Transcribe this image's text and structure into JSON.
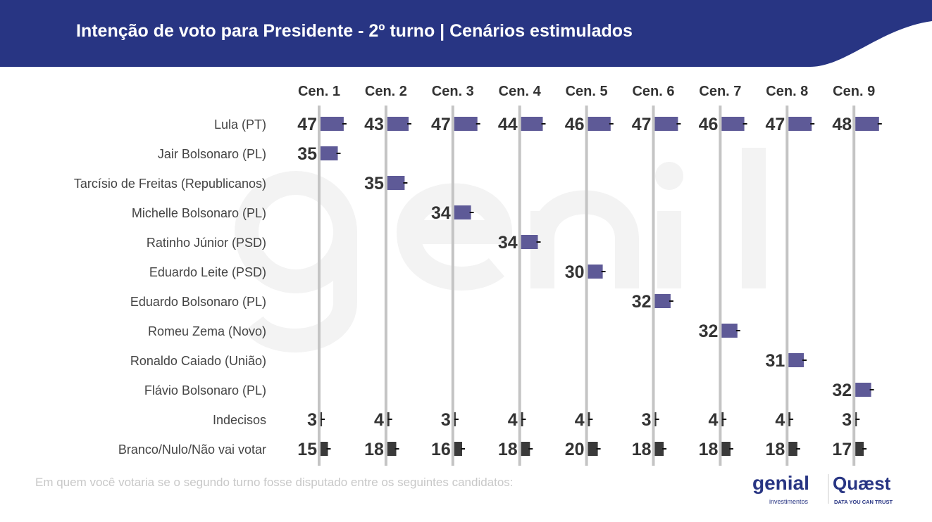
{
  "header": {
    "title": "Intenção de voto para Presidente - 2º turno | Cenários estimulados"
  },
  "note": "Em quem você votaria se o segundo turno fosse disputado entre os seguintes candidatos:",
  "logos": {
    "genial": "genial",
    "genial_sub": "investimentos",
    "quaest": "Quæst",
    "quaest_sub": "DATA YOU CAN TRUST"
  },
  "watermark": {
    "big": "genial",
    "small": "investimentos"
  },
  "colors": {
    "header": "#283583",
    "candidate_bar": "#5e5a97",
    "other_bar": "#3a3a3a",
    "axis": "#c4c4c4",
    "text": "#333333"
  },
  "chart_data": {
    "type": "bar",
    "orientation": "horizontal",
    "scenarios": [
      "Cen. 1",
      "Cen. 2",
      "Cen. 3",
      "Cen. 4",
      "Cen. 5",
      "Cen. 6",
      "Cen. 7",
      "Cen. 8",
      "Cen. 9"
    ],
    "rows": [
      {
        "label": "Lula (PT)",
        "values": [
          47,
          43,
          47,
          44,
          46,
          47,
          46,
          47,
          48
        ],
        "kind": "candidate"
      },
      {
        "label": "Jair Bolsonaro (PL)",
        "values": [
          35,
          null,
          null,
          null,
          null,
          null,
          null,
          null,
          null
        ],
        "kind": "candidate"
      },
      {
        "label": "Tarcísio de Freitas (Republicanos)",
        "values": [
          null,
          35,
          null,
          null,
          null,
          null,
          null,
          null,
          null
        ],
        "kind": "candidate"
      },
      {
        "label": "Michelle Bolsonaro (PL)",
        "values": [
          null,
          null,
          34,
          null,
          null,
          null,
          null,
          null,
          null
        ],
        "kind": "candidate"
      },
      {
        "label": "Ratinho Júnior (PSD)",
        "values": [
          null,
          null,
          null,
          34,
          null,
          null,
          null,
          null,
          null
        ],
        "kind": "candidate"
      },
      {
        "label": "Eduardo Leite (PSD)",
        "values": [
          null,
          null,
          null,
          null,
          30,
          null,
          null,
          null,
          null
        ],
        "kind": "candidate"
      },
      {
        "label": "Eduardo Bolsonaro (PL)",
        "values": [
          null,
          null,
          null,
          null,
          null,
          32,
          null,
          null,
          null
        ],
        "kind": "candidate"
      },
      {
        "label": "Romeu Zema (Novo)",
        "values": [
          null,
          null,
          null,
          null,
          null,
          null,
          32,
          null,
          null
        ],
        "kind": "candidate"
      },
      {
        "label": "Ronaldo Caiado (União)",
        "values": [
          null,
          null,
          null,
          null,
          null,
          null,
          null,
          31,
          null
        ],
        "kind": "candidate"
      },
      {
        "label": "Flávio Bolsonaro (PL)",
        "values": [
          null,
          null,
          null,
          null,
          null,
          null,
          null,
          null,
          32
        ],
        "kind": "candidate"
      },
      {
        "label": "Indecisos",
        "values": [
          3,
          4,
          3,
          4,
          4,
          3,
          4,
          4,
          3
        ],
        "kind": "other"
      },
      {
        "label": "Branco/Nulo/Não vai votar",
        "values": [
          15,
          18,
          16,
          18,
          20,
          18,
          18,
          18,
          17
        ],
        "kind": "other"
      }
    ],
    "error_bars": true
  }
}
